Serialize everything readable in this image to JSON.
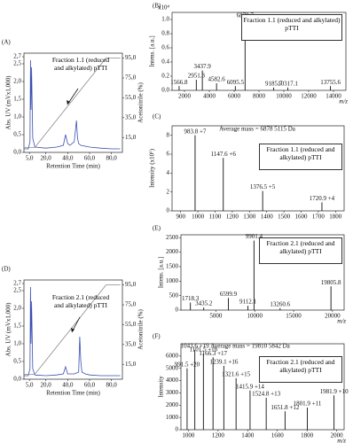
{
  "chart_data": [
    {
      "type": "line",
      "panel": "(A)",
      "x_label": "Retention Time (min)",
      "y_label": "Abs. UV (mVx1,000)",
      "y2_label": "Acetonitrile (%)",
      "note": "Fraction 1.1 (reduced and alkylated) pTTI",
      "xlim": [
        0,
        90
      ],
      "xticks": [
        {
          "value": 5,
          "label": "5,0"
        },
        {
          "value": 20,
          "label": "20,0"
        },
        {
          "value": 40,
          "label": "40,0"
        },
        {
          "value": 60,
          "label": "60,0"
        },
        {
          "value": 80,
          "label": "80,0"
        }
      ],
      "ylim": [
        0,
        2.8
      ],
      "yticks": [
        {
          "value": 0,
          "label": "0,0"
        },
        {
          "value": 0.5,
          "label": "0,5"
        },
        {
          "value": 1,
          "label": "1,0"
        },
        {
          "value": 1.5,
          "label": "1,5"
        },
        {
          "value": 2,
          "label": "2,0"
        },
        {
          "value": 2.5,
          "label": "2,5"
        },
        {
          "value": 2.7,
          "label": "2,7"
        }
      ],
      "y2lim": [
        0,
        100
      ],
      "y2ticks": [
        {
          "value": 15,
          "label": "15,0"
        },
        {
          "value": 35,
          "label": "35,0"
        },
        {
          "value": 55,
          "label": "55,0"
        },
        {
          "value": 75,
          "label": "75,0"
        },
        {
          "value": 95,
          "label": "95,0"
        }
      ],
      "series": [
        {
          "color": "#3a4fb0",
          "x": [
            0,
            4,
            5.5,
            6,
            6.5,
            7,
            8,
            10,
            20,
            30,
            36,
            38,
            40,
            42,
            46,
            48,
            49,
            50,
            52,
            60,
            70,
            80,
            88
          ],
          "values": [
            0.1,
            0.1,
            0.3,
            2.6,
            1.2,
            2.4,
            0.4,
            0.15,
            0.12,
            0.15,
            0.2,
            0.5,
            0.25,
            0.2,
            0.3,
            0.9,
            0.4,
            0.25,
            0.2,
            0.15,
            0.12,
            0.1,
            0.1
          ]
        },
        {
          "color": "#888888",
          "axis": "y2",
          "x": [
            0,
            10,
            75,
            88
          ],
          "values": [
            5,
            5,
            95,
            95
          ]
        }
      ]
    },
    {
      "type": "stem",
      "panel": "(B)",
      "x_label": "m/z",
      "y_label": "Intens. [a.u.]",
      "y_scale_label": "x10⁴",
      "note": "Fraction 1.1 (reduced and alkylated) pTTI",
      "color": "#111111",
      "xlim": [
        1000,
        15000
      ],
      "xticks": [
        2000,
        4000,
        6000,
        8000,
        10000,
        12000,
        14000
      ],
      "ylim": [
        0,
        1.1
      ],
      "yticks": [
        {
          "value": 0,
          "label": "0.0"
        },
        0.2,
        0.4,
        0.6,
        0.8,
        {
          "value": 1,
          "label": "1.0"
        }
      ],
      "x": [
        1566.8,
        2951.3,
        3437.9,
        4582.6,
        6095.5,
        6878.7,
        9185.7,
        10317.1,
        13755.6
      ],
      "values": [
        0.06,
        0.15,
        0.28,
        0.1,
        0.06,
        1.0,
        0.04,
        0.04,
        0.06
      ],
      "peak_labels": [
        "1566.8",
        "2951.3",
        "3437.9",
        "4582.6",
        "6095.5",
        "6878.7",
        "9185.7",
        "10317.1",
        "13755.6"
      ]
    },
    {
      "type": "stem",
      "panel": "(C)",
      "y_label": "Intensity (x10⁶)",
      "subtitle": "Average mass = 6878 5115 Da",
      "note": "Fraction 1.1 (reduced and alkylated) pTTI",
      "color": "#111111",
      "xlim": [
        850,
        1850
      ],
      "xticks": [
        900,
        1000,
        1100,
        1200,
        1300,
        1400,
        1500,
        1600,
        1700,
        1800
      ],
      "ylim": [
        0,
        9
      ],
      "yticks": [
        0,
        2,
        4,
        6,
        8
      ],
      "x": [
        983.8,
        1147.6,
        1376.5,
        1720.9
      ],
      "values": [
        8,
        5.6,
        2.1,
        0.9
      ],
      "peak_labels": [
        "983.8 +7",
        "1147.6 +6",
        "1376.5 +5",
        "1720.9 +4"
      ]
    },
    {
      "type": "line",
      "panel": "(D)",
      "x_label": "Retention Time (min)",
      "y_label": "Abs. UV (mVx1,000)",
      "y2_label": "Acetonitrile (%)",
      "note": "Fraction 2.1 (reduced and alkylated) pTTI",
      "xlim": [
        0,
        90
      ],
      "xticks": [
        {
          "value": 5,
          "label": "5,0"
        },
        {
          "value": 20,
          "label": "20,0"
        },
        {
          "value": 40,
          "label": "40,0"
        },
        {
          "value": 60,
          "label": "60,0"
        },
        {
          "value": 80,
          "label": "80,0"
        }
      ],
      "ylim": [
        0,
        2.8
      ],
      "yticks": [
        {
          "value": 0,
          "label": "0,0"
        },
        {
          "value": 0.5,
          "label": "0,5"
        },
        {
          "value": 1,
          "label": "1,0"
        },
        {
          "value": 1.5,
          "label": "1,5"
        },
        {
          "value": 2,
          "label": "2,0"
        },
        {
          "value": 2.5,
          "label": "2,5"
        },
        {
          "value": 2.7,
          "label": "2,7"
        }
      ],
      "y2lim": [
        0,
        100
      ],
      "y2ticks": [
        {
          "value": 15,
          "label": "15,0"
        },
        {
          "value": 35,
          "label": "35,0"
        },
        {
          "value": 55,
          "label": "55,0"
        },
        {
          "value": 75,
          "label": "75,0"
        },
        {
          "value": 95,
          "label": "95,0"
        }
      ],
      "series": [
        {
          "color": "#3a4fb0",
          "x": [
            0,
            4,
            5.5,
            6,
            6.5,
            7,
            8,
            10,
            20,
            30,
            36,
            38,
            40,
            46,
            50,
            51,
            52,
            53,
            56,
            60,
            70,
            80,
            88
          ],
          "values": [
            0.1,
            0.1,
            0.3,
            2.6,
            1.0,
            2.2,
            0.3,
            0.12,
            0.1,
            0.12,
            0.15,
            0.35,
            0.15,
            0.15,
            0.2,
            1.2,
            0.5,
            0.2,
            0.15,
            0.12,
            0.1,
            0.1,
            0.1
          ]
        },
        {
          "color": "#888888",
          "axis": "y2",
          "x": [
            0,
            10,
            75,
            88
          ],
          "values": [
            5,
            5,
            95,
            95
          ]
        }
      ]
    },
    {
      "type": "stem",
      "panel": "(E)",
      "x_label": "m/z",
      "y_label": "Intens. [a.u.]",
      "note": "Fraction 2.1 (reduced and alkylated) pTTI",
      "color": "#111111",
      "xlim": [
        500,
        21500
      ],
      "xticks": [
        5000,
        10000,
        15000,
        20000
      ],
      "ylim": [
        0,
        2600
      ],
      "yticks": [
        0,
        500,
        1000,
        1500,
        2000,
        2500
      ],
      "x": [
        1718.3,
        3435.2,
        6599.9,
        9112.1,
        9901.4,
        13260.6,
        19805.8
      ],
      "values": [
        260,
        90,
        420,
        150,
        2400,
        70,
        820
      ],
      "peak_labels": [
        "1718.3",
        "3435.2",
        "6599.9",
        "9112.1",
        "9901.4",
        "13260.6",
        "19805.8"
      ]
    },
    {
      "type": "stem",
      "panel": "(F)",
      "x_label": "m/z",
      "y_label": "Intensity",
      "subtitle": "Average mass = 19810 5842 Da",
      "note": "Fraction 2.1 (reduced and alkylated) pTTI",
      "color": "#111111",
      "xlim": [
        950,
        2050
      ],
      "xticks": [
        1000,
        1200,
        1400,
        1600,
        1800,
        2000
      ],
      "ylim": [
        0,
        7000
      ],
      "yticks": [
        0,
        1000,
        2000,
        3000,
        4000,
        5000,
        6000
      ],
      "x": [
        991.5,
        1043.6,
        1101.5,
        1166.3,
        1239.1,
        1321.6,
        1415.9,
        1524.8,
        1651.8,
        1801.9,
        1981.9
      ],
      "values": [
        5000,
        6500,
        6200,
        5900,
        5200,
        4200,
        3200,
        2600,
        1500,
        1800,
        2800
      ],
      "peak_labels": [
        "991.5 +20",
        "1043.6 +19",
        "1101.5 +18",
        "1166.3 +17",
        "1239.1 +16",
        "1321.6 +15",
        "1415.9 +14",
        "1524.8 +13",
        "1651.8 +12",
        "1801.9 +11",
        "1981.9 +10"
      ]
    }
  ]
}
